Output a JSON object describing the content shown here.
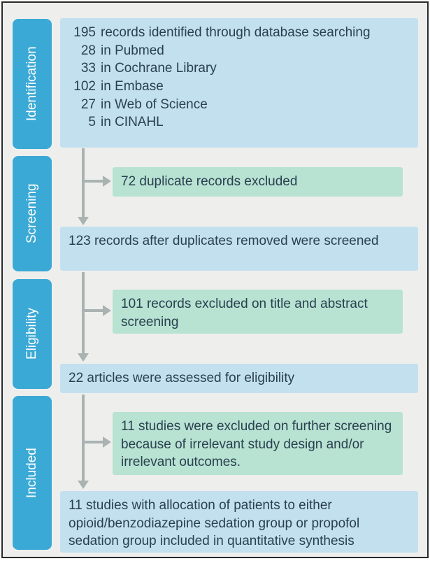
{
  "stages": {
    "identification": "Identification",
    "screening": "Screening",
    "eligibility": "Eligibility",
    "included": "Included"
  },
  "identification": {
    "total_n": "195",
    "total_txt": "records identified through database searching",
    "sources": [
      {
        "n": "28",
        "txt": "in Pubmed"
      },
      {
        "n": "33",
        "txt": "in Cochrane Library"
      },
      {
        "n": "102",
        "txt": "in Embase"
      },
      {
        "n": "27",
        "txt": "in Web of Science"
      },
      {
        "n": "5",
        "txt": "in CINAHL"
      }
    ]
  },
  "duplicates_excluded": "72 duplicate records excluded",
  "after_dup": "123 records after duplicates removed were screened",
  "excluded_title_abstract": "101 records excluded on title and abstract screening",
  "assessed_eligibility": "22 articles were assessed for eligibility",
  "excluded_further": "11 studies were excluded on further screening because of irrelevant study design and/or irrelevant outcomes.",
  "included_final": "11 studies with allocation of patients to either opioid/benzodiazepine sedation group or propofol sedation group included in quantitative synthesis",
  "colors": {
    "stage_label_bg": "#3ba9d6",
    "box_blue_bg": "#c3e0ef",
    "box_green_bg": "#b8e2d2",
    "canvas_bg": "#eeefed",
    "arrow": "#aab3b1",
    "text": "#2a4050"
  }
}
